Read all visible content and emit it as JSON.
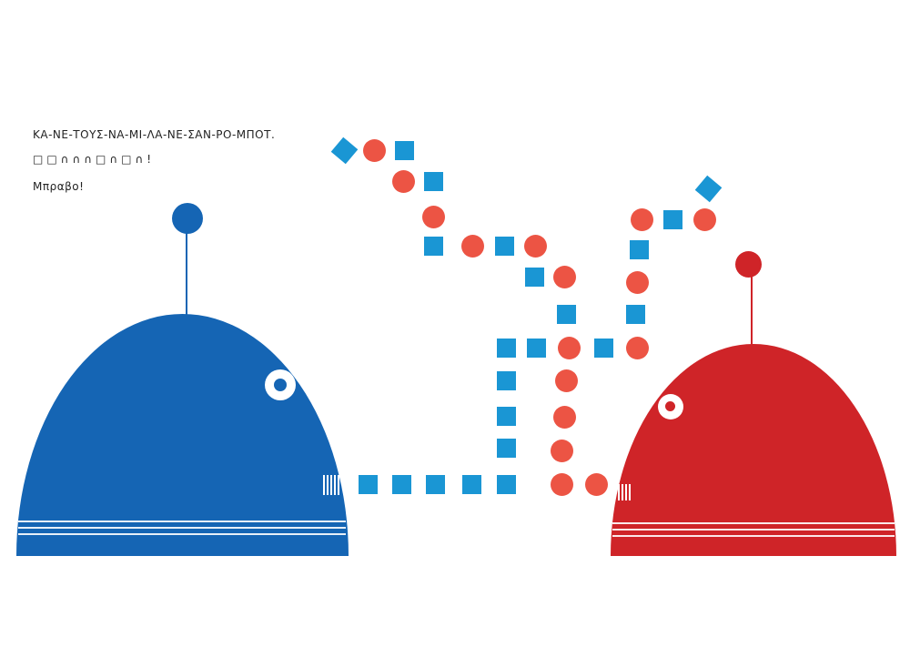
{
  "text": {
    "line1": "ΚΑ-ΝΕ-ΤΟΥΣ-ΝΑ-ΜΙ-ΛΑ-ΝΕ-ΣΑΝ-ΡΟ-ΜΠΟΤ.",
    "line2": "□□∩∩∩□∩□∩!",
    "line3": "Μπραβο!"
  },
  "colors": {
    "blue_robot": "#1565b4",
    "red_robot": "#cf2428",
    "blue_dots": "#1a96d4",
    "red_dots": "#ec5444"
  }
}
